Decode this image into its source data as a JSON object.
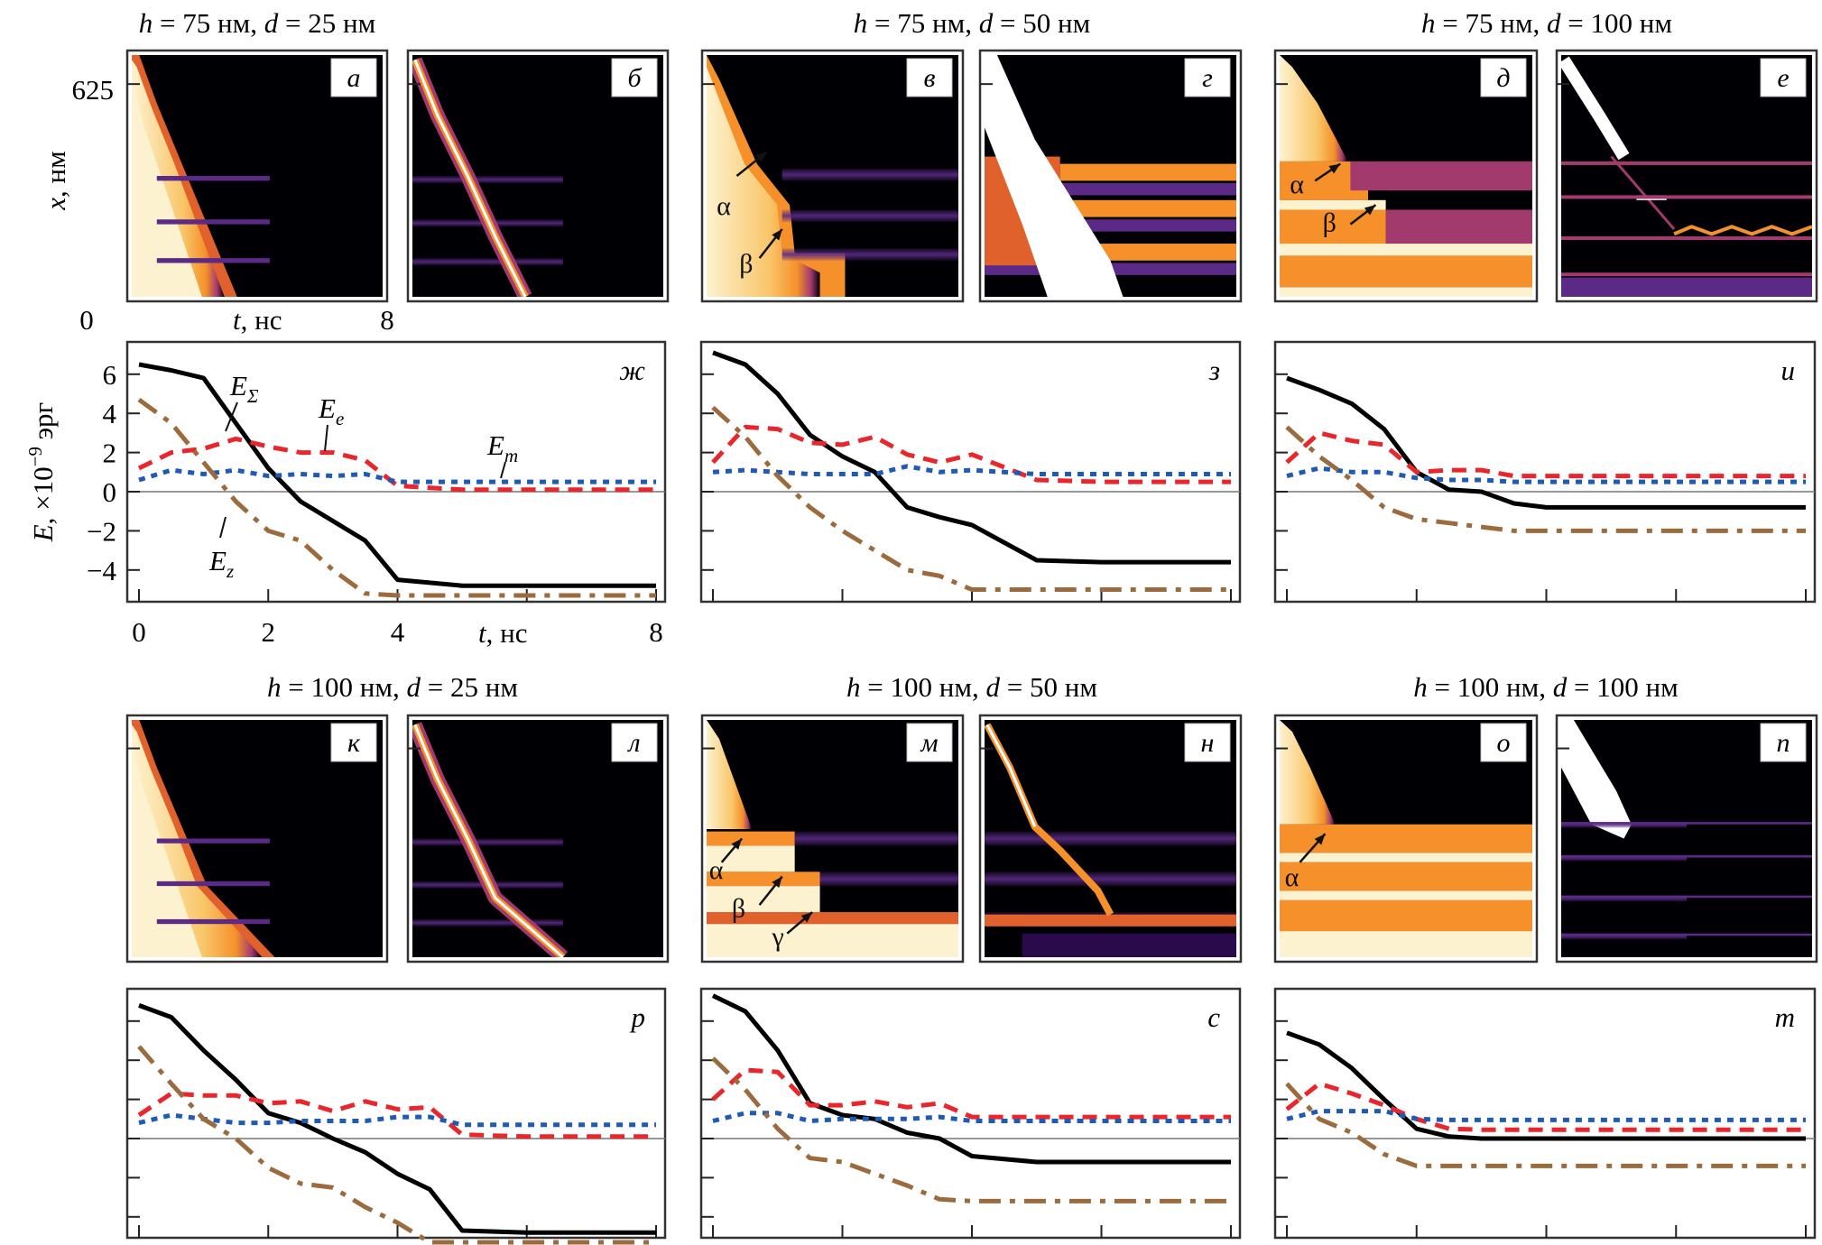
{
  "figure": {
    "group_titles": [
      {
        "h": "75",
        "d": "25",
        "unit": "нм"
      },
      {
        "h": "75",
        "d": "50",
        "unit": "нм"
      },
      {
        "h": "75",
        "d": "100",
        "unit": "нм"
      },
      {
        "h": "100",
        "d": "25",
        "unit": "нм"
      },
      {
        "h": "100",
        "d": "50",
        "unit": "нм"
      },
      {
        "h": "100",
        "d": "100",
        "unit": "нм"
      }
    ],
    "map_axis": {
      "ylabel_var": "x",
      "ylabel_unit": ", нм",
      "y_tick_top": "625",
      "y_tick_origin": "0",
      "xlabel_var": "t",
      "xlabel_unit": ", нс",
      "x_tick_end": "8"
    },
    "energy_axis": {
      "ylabel_var": "E",
      "ylabel_unit": ", ×10",
      "ylabel_exp": "−9",
      "ylabel_tail": " эрг",
      "xlabel_var": "t",
      "xlabel_unit": ", нс",
      "yticks": [
        "6",
        "4",
        "2",
        "0",
        "−2",
        "−4"
      ],
      "xticks": [
        "0",
        "2",
        "4",
        "8"
      ]
    },
    "map_panels": [
      {
        "letter": "а",
        "kind": "a",
        "annotations": []
      },
      {
        "letter": "б",
        "kind": "b",
        "annotations": []
      },
      {
        "letter": "в",
        "kind": "v",
        "annotations": [
          "α",
          "β"
        ]
      },
      {
        "letter": "г",
        "kind": "g",
        "annotations": []
      },
      {
        "letter": "д",
        "kind": "d",
        "annotations": [
          "α",
          "β"
        ]
      },
      {
        "letter": "е",
        "kind": "e",
        "annotations": []
      },
      {
        "letter": "к",
        "kind": "k",
        "annotations": []
      },
      {
        "letter": "л",
        "kind": "l",
        "annotations": []
      },
      {
        "letter": "м",
        "kind": "m",
        "annotations": [
          "α",
          "β",
          "γ"
        ]
      },
      {
        "letter": "н",
        "kind": "n",
        "annotations": []
      },
      {
        "letter": "о",
        "kind": "o",
        "annotations": [
          "α"
        ]
      },
      {
        "letter": "п",
        "kind": "p",
        "annotations": []
      }
    ],
    "colormap": [
      "#000004",
      "#2a0a4a",
      "#5b2a86",
      "#a23a6e",
      "#e0612b",
      "#f5902a",
      "#f9c66a",
      "#fdf2cf",
      "#ffffff"
    ]
  },
  "chart_data": [
    {
      "type": "line",
      "panel": "ж",
      "title": "h = 75 нм, d = 25 нм",
      "xlabel": "t, нс",
      "ylabel": "E, ×10^-9 эрг",
      "xlim": [
        0,
        8
      ],
      "ylim": [
        -5.5,
        7.5
      ],
      "x": [
        0,
        0.5,
        1,
        1.5,
        2,
        2.5,
        3,
        3.5,
        4,
        5,
        6,
        7,
        8
      ],
      "series": [
        {
          "name": "EΣ",
          "color": "#000000",
          "style": "solid",
          "values": [
            6.5,
            6.2,
            5.8,
            3.5,
            1.2,
            -0.5,
            -1.5,
            -2.5,
            -4.5,
            -4.8,
            -4.8,
            -4.8,
            -4.8
          ]
        },
        {
          "name": "Ee",
          "color": "#e8262b",
          "style": "dashed",
          "values": [
            1.2,
            2.0,
            2.2,
            2.7,
            2.3,
            2.0,
            2.0,
            1.6,
            0.3,
            0.1,
            0.1,
            0.1,
            0.1
          ]
        },
        {
          "name": "Em",
          "color": "#1f5bb5",
          "style": "dotted",
          "values": [
            0.6,
            1.1,
            0.9,
            1.1,
            0.8,
            0.9,
            0.8,
            0.9,
            0.5,
            0.5,
            0.5,
            0.5,
            0.5
          ]
        },
        {
          "name": "Ez",
          "color": "#9c6b3d",
          "style": "dashdot",
          "values": [
            4.7,
            3.5,
            1.5,
            -0.5,
            -2.0,
            -2.5,
            -4.0,
            -5.2,
            -5.3,
            -5.3,
            -5.3,
            -5.3,
            -5.3
          ]
        }
      ],
      "annotations": [
        "EΣ",
        "Ee",
        "Em",
        "Ez"
      ]
    },
    {
      "type": "line",
      "panel": "з",
      "title": "h = 75 нм, d = 50 нм",
      "xlim": [
        0,
        8
      ],
      "ylim": [
        -5.5,
        7.5
      ],
      "x": [
        0,
        0.5,
        1,
        1.5,
        2,
        2.5,
        3,
        3.5,
        4,
        5,
        6,
        7,
        8
      ],
      "series": [
        {
          "name": "EΣ",
          "color": "#000000",
          "style": "solid",
          "values": [
            7.1,
            6.5,
            5.0,
            2.9,
            1.8,
            1.0,
            -0.8,
            -1.3,
            -1.7,
            -3.5,
            -3.6,
            -3.6,
            -3.6
          ]
        },
        {
          "name": "Ee",
          "color": "#e8262b",
          "style": "dashed",
          "values": [
            1.5,
            3.3,
            3.2,
            2.5,
            2.4,
            2.8,
            1.9,
            1.5,
            1.9,
            0.6,
            0.5,
            0.5,
            0.5
          ]
        },
        {
          "name": "Em",
          "color": "#1f5bb5",
          "style": "dotted",
          "values": [
            1.0,
            1.1,
            1.0,
            0.9,
            0.9,
            0.9,
            1.3,
            1.0,
            1.1,
            0.9,
            0.9,
            0.9,
            0.9
          ]
        },
        {
          "name": "Ez",
          "color": "#9c6b3d",
          "style": "dashdot",
          "values": [
            4.3,
            2.8,
            0.8,
            -0.8,
            -2.0,
            -3.0,
            -4.0,
            -4.3,
            -5.0,
            -5.0,
            -5.0,
            -5.0,
            -5.0
          ]
        }
      ]
    },
    {
      "type": "line",
      "panel": "и",
      "title": "h = 75 нм, d = 100 нм",
      "xlim": [
        0,
        8
      ],
      "ylim": [
        -5.5,
        7.5
      ],
      "x": [
        0,
        0.5,
        1,
        1.5,
        2,
        2.5,
        3,
        3.5,
        4,
        5,
        6,
        7,
        8
      ],
      "series": [
        {
          "name": "EΣ",
          "color": "#000000",
          "style": "solid",
          "values": [
            5.8,
            5.2,
            4.5,
            3.2,
            1.0,
            0.1,
            0.0,
            -0.6,
            -0.8,
            -0.8,
            -0.8,
            -0.8,
            -0.8
          ]
        },
        {
          "name": "Ee",
          "color": "#e8262b",
          "style": "dashed",
          "values": [
            1.5,
            3.0,
            2.6,
            2.4,
            1.0,
            1.1,
            1.1,
            0.8,
            0.8,
            0.8,
            0.8,
            0.8,
            0.8
          ]
        },
        {
          "name": "Em",
          "color": "#1f5bb5",
          "style": "dotted",
          "values": [
            0.8,
            1.2,
            1.0,
            1.0,
            0.7,
            0.6,
            0.6,
            0.5,
            0.5,
            0.5,
            0.5,
            0.5,
            0.5
          ]
        },
        {
          "name": "Ez",
          "color": "#9c6b3d",
          "style": "dashdot",
          "values": [
            3.3,
            1.8,
            0.6,
            -0.8,
            -1.4,
            -1.6,
            -1.8,
            -2.0,
            -2.0,
            -2.0,
            -2.0,
            -2.0,
            -2.0
          ]
        }
      ]
    },
    {
      "type": "line",
      "panel": "р",
      "title": "h = 100 нм, d = 25 нм",
      "xlim": [
        0,
        8
      ],
      "ylim": [
        -5.5,
        7.5
      ],
      "x": [
        0,
        0.5,
        1,
        1.5,
        2,
        2.5,
        3,
        3.5,
        4,
        4.5,
        5,
        6,
        7,
        8
      ],
      "series": [
        {
          "name": "EΣ",
          "color": "#000000",
          "style": "solid",
          "values": [
            6.8,
            6.2,
            4.5,
            3.0,
            1.3,
            0.8,
            0.0,
            -0.7,
            -1.8,
            -2.6,
            -4.7,
            -4.8,
            -4.8,
            -4.8
          ]
        },
        {
          "name": "Ee",
          "color": "#e8262b",
          "style": "dashed",
          "values": [
            1.2,
            2.3,
            2.2,
            2.2,
            1.8,
            1.9,
            1.4,
            1.9,
            1.5,
            1.6,
            0.2,
            0.1,
            0.1,
            0.1
          ]
        },
        {
          "name": "Em",
          "color": "#1f5bb5",
          "style": "dotted",
          "values": [
            0.8,
            1.2,
            1.0,
            0.8,
            0.8,
            0.9,
            0.9,
            0.9,
            1.1,
            1.1,
            0.7,
            0.7,
            0.7,
            0.7
          ]
        },
        {
          "name": "Ez",
          "color": "#9c6b3d",
          "style": "dashdot",
          "values": [
            4.7,
            2.8,
            1.0,
            0.0,
            -1.5,
            -2.3,
            -2.5,
            -3.5,
            -4.3,
            -5.3,
            -5.3,
            -5.3,
            -5.3,
            -5.3
          ]
        }
      ]
    },
    {
      "type": "line",
      "panel": "с",
      "title": "h = 100 нм, d = 50 нм",
      "xlim": [
        0,
        8
      ],
      "ylim": [
        -5.5,
        7.5
      ],
      "x": [
        0,
        0.5,
        1,
        1.5,
        2,
        2.5,
        3,
        3.5,
        4,
        5,
        6,
        7,
        8
      ],
      "series": [
        {
          "name": "EΣ",
          "color": "#000000",
          "style": "solid",
          "values": [
            7.3,
            6.5,
            4.5,
            1.8,
            1.2,
            1.0,
            0.3,
            0.0,
            -0.9,
            -1.2,
            -1.2,
            -1.2,
            -1.2
          ]
        },
        {
          "name": "Ee",
          "color": "#e8262b",
          "style": "dashed",
          "values": [
            2.0,
            3.5,
            3.4,
            1.7,
            1.7,
            1.9,
            1.6,
            1.8,
            1.1,
            1.1,
            1.1,
            1.1,
            1.1
          ]
        },
        {
          "name": "Em",
          "color": "#1f5bb5",
          "style": "dotted",
          "values": [
            0.9,
            1.3,
            1.3,
            0.9,
            1.0,
            1.0,
            1.0,
            1.1,
            0.9,
            0.9,
            0.9,
            0.9,
            0.9
          ]
        },
        {
          "name": "Ez",
          "color": "#9c6b3d",
          "style": "dashdot",
          "values": [
            4.1,
            2.5,
            0.5,
            -1.0,
            -1.2,
            -1.8,
            -2.4,
            -3.1,
            -3.2,
            -3.2,
            -3.2,
            -3.2,
            -3.2
          ]
        }
      ]
    },
    {
      "type": "line",
      "panel": "т",
      "title": "h = 100 нм, d = 100 нм",
      "xlim": [
        0,
        8
      ],
      "ylim": [
        -5.5,
        7.5
      ],
      "x": [
        0,
        0.5,
        1,
        1.5,
        2,
        2.5,
        3,
        4,
        5,
        6,
        7,
        8
      ],
      "series": [
        {
          "name": "EΣ",
          "color": "#000000",
          "style": "solid",
          "values": [
            5.4,
            4.8,
            3.6,
            2.0,
            0.5,
            0.1,
            0.0,
            0.0,
            0.0,
            0.0,
            0.0,
            0.0
          ]
        },
        {
          "name": "Ee",
          "color": "#e8262b",
          "style": "dashed",
          "values": [
            1.5,
            2.8,
            2.3,
            1.7,
            1.0,
            0.5,
            0.45,
            0.45,
            0.45,
            0.45,
            0.45,
            0.45
          ]
        },
        {
          "name": "Em",
          "color": "#1f5bb5",
          "style": "dotted",
          "values": [
            1.0,
            1.4,
            1.4,
            1.4,
            1.0,
            0.95,
            0.95,
            0.95,
            0.95,
            0.95,
            0.95,
            0.95
          ]
        },
        {
          "name": "Ez",
          "color": "#9c6b3d",
          "style": "dashdot",
          "values": [
            2.8,
            1.0,
            0.3,
            -0.8,
            -1.4,
            -1.4,
            -1.4,
            -1.4,
            -1.4,
            -1.4,
            -1.4,
            -1.4
          ]
        }
      ]
    }
  ]
}
